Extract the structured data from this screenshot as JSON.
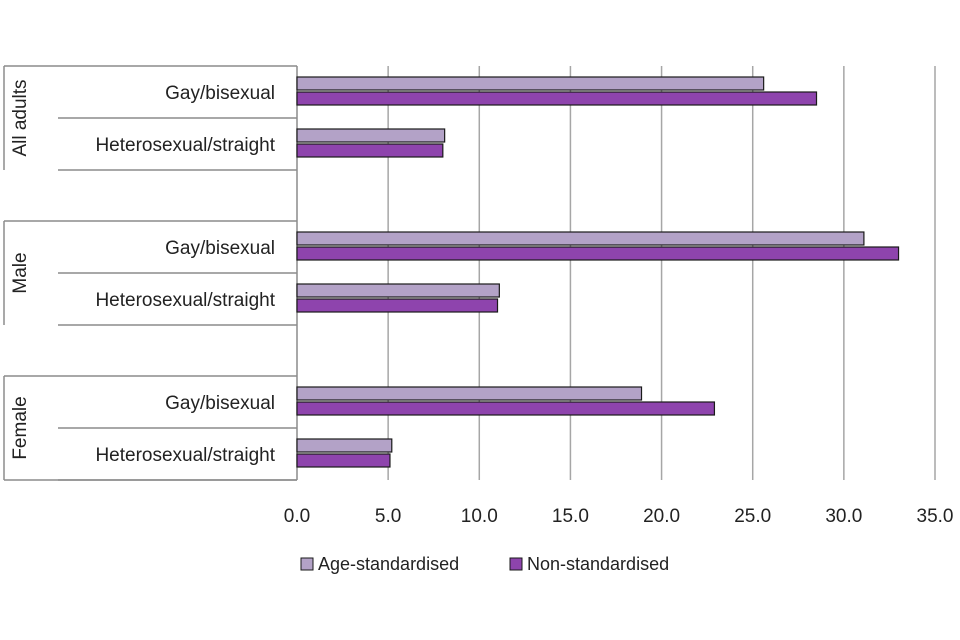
{
  "chart_data": {
    "type": "bar",
    "orientation": "horizontal",
    "title": "",
    "xlabel": "",
    "ylabel": "",
    "xlim": [
      0,
      35
    ],
    "x_ticks": [
      "0.0",
      "5.0",
      "10.0",
      "15.0",
      "20.0",
      "25.0",
      "30.0",
      "35.0"
    ],
    "x_tick_values": [
      0,
      5,
      10,
      15,
      20,
      25,
      30,
      35
    ],
    "grid": "vertical",
    "groups": [
      {
        "label": "All adults",
        "categories": [
          {
            "label": "Gay/bisexual",
            "values": [
              25.6,
              28.5
            ]
          },
          {
            "label": "Heterosexual/straight",
            "values": [
              8.1,
              8.0
            ]
          }
        ]
      },
      {
        "label": "Male",
        "categories": [
          {
            "label": "Gay/bisexual",
            "values": [
              31.1,
              33.0
            ]
          },
          {
            "label": "Heterosexual/straight",
            "values": [
              11.1,
              11.0
            ]
          }
        ]
      },
      {
        "label": "Female",
        "categories": [
          {
            "label": "Gay/bisexual",
            "values": [
              18.9,
              22.9
            ]
          },
          {
            "label": "Heterosexual/straight",
            "values": [
              5.2,
              5.1
            ]
          }
        ]
      }
    ],
    "series": [
      {
        "name": "Age-standardised",
        "color": "#b3a2c7"
      },
      {
        "name": "Non-standardised",
        "color": "#8e44ad"
      }
    ],
    "legend_position": "bottom"
  }
}
